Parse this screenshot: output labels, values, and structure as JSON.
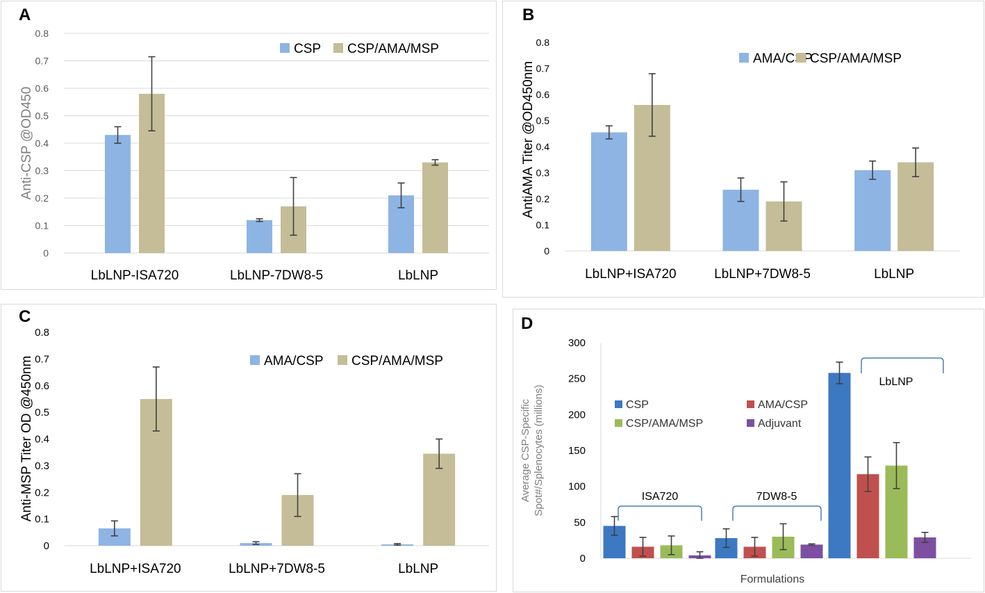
{
  "chart_data": [
    {
      "panel": "A",
      "type": "bar",
      "title": "",
      "xlabel": "",
      "ylabel": "Anti-CSP @OD450",
      "categories": [
        "LbLNP-ISA720",
        "LbLNP-7DW8-5",
        "LbLNP"
      ],
      "series": [
        {
          "name": "CSP",
          "color": "#8eb4e3",
          "values": [
            0.43,
            0.12,
            0.21
          ],
          "errors": [
            0.03,
            0.005,
            0.045
          ]
        },
        {
          "name": "CSP/AMA/MSP",
          "color": "#c4bd97",
          "values": [
            0.58,
            0.17,
            0.33
          ],
          "errors": [
            0.135,
            0.105,
            0.01
          ]
        }
      ],
      "ylim": [
        0,
        0.8
      ],
      "yticks": [
        "0",
        "0.1",
        "0.2",
        "0.3",
        "0.4",
        "0.5",
        "0.6",
        "0.7",
        "0.8"
      ]
    },
    {
      "panel": "B",
      "type": "bar",
      "title": "",
      "xlabel": "",
      "ylabel": "AntiAMA Titer @OD450nm",
      "categories": [
        "LbLNP+ISA720",
        "LbLNP+7DW8-5",
        "LbLNP"
      ],
      "series": [
        {
          "name": "AMA/CSP",
          "color": "#8eb4e3",
          "values": [
            0.455,
            0.235,
            0.31
          ],
          "errors": [
            0.025,
            0.045,
            0.035
          ]
        },
        {
          "name": "CSP/AMA/MSP",
          "color": "#c4bd97",
          "values": [
            0.56,
            0.19,
            0.34
          ],
          "errors": [
            0.12,
            0.075,
            0.055
          ]
        }
      ],
      "ylim": [
        0,
        0.8
      ],
      "yticks": [
        "0",
        "0.1",
        "0.2",
        "0.3",
        "0.4",
        "0.5",
        "0.6",
        "0.7",
        "0.8"
      ]
    },
    {
      "panel": "C",
      "type": "bar",
      "title": "",
      "xlabel": "",
      "ylabel": "Anti-MSP Titer OD @450nm",
      "categories": [
        "LbLNP+ISA720",
        "LbLNP+7DW8-5",
        "LbLNP"
      ],
      "series": [
        {
          "name": "AMA/CSP",
          "color": "#8eb4e3",
          "values": [
            0.065,
            0.01,
            0.005
          ],
          "errors": [
            0.028,
            0.005,
            0.003
          ]
        },
        {
          "name": "CSP/AMA/MSP",
          "color": "#c4bd97",
          "values": [
            0.55,
            0.19,
            0.345
          ],
          "errors": [
            0.12,
            0.08,
            0.055
          ]
        }
      ],
      "ylim": [
        0,
        0.8
      ],
      "yticks": [
        "0",
        "0.1",
        "0.2",
        "0.3",
        "0.4",
        "0.5",
        "0.6",
        "0.7",
        "0.8"
      ]
    },
    {
      "panel": "D",
      "type": "bar",
      "title": "",
      "xlabel": "Formulations",
      "ylabel_line1": "Average CSP-Specific",
      "ylabel_line2": "Spot#/Splenocytes (millions)",
      "categories": [
        "ISA720",
        "7DW8-5",
        "LbLNP"
      ],
      "series": [
        {
          "name": "CSP",
          "color": "#3d78c2",
          "values": [
            45,
            28,
            258
          ],
          "errors": [
            13,
            13,
            15
          ]
        },
        {
          "name": "AMA/CSP",
          "color": "#c0504d",
          "values": [
            16,
            16,
            117
          ],
          "errors": [
            13,
            13,
            24
          ]
        },
        {
          "name": "CSP/AMA/MSP",
          "color": "#9bbb59",
          "values": [
            18,
            30,
            129
          ],
          "errors": [
            13,
            18,
            32
          ]
        },
        {
          "name": "Adjuvant",
          "color": "#7d4fa0",
          "values": [
            4,
            19,
            29
          ],
          "errors": [
            5,
            1,
            7
          ]
        }
      ],
      "ylim": [
        0,
        300
      ],
      "yticks": [
        "0",
        "50",
        "100",
        "150",
        "200",
        "250",
        "300"
      ]
    }
  ]
}
